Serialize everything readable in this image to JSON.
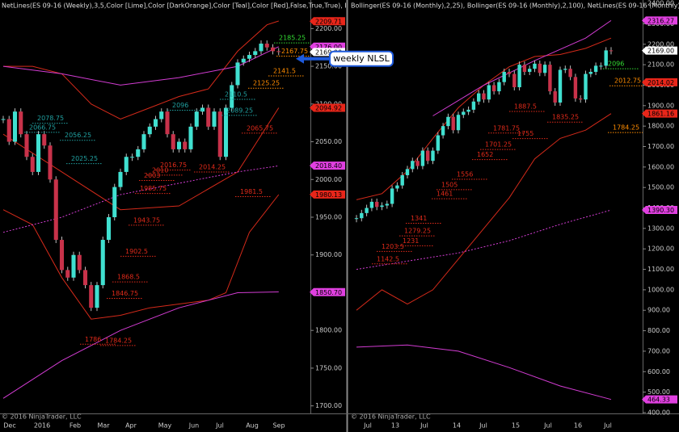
{
  "panels": [
    {
      "title": "NetLines(ES 09-16 (Weekly),3,5,Color [Lime],Color [DarkOrange],Color [Teal],Color [Red],False,True,True), Bo",
      "watermark": "© 2016 NinjaTrader, LLC",
      "ylim": [
        1690,
        2210
      ],
      "yticks": [
        {
          "value": 1700,
          "label": "1700.00"
        },
        {
          "value": 1750,
          "label": "1750.00"
        },
        {
          "value": 1800,
          "label": "1800.00"
        },
        {
          "value": 1850,
          "label": "1850.00"
        },
        {
          "value": 1900,
          "label": "1900.00"
        },
        {
          "value": 1950,
          "label": "1950.00"
        },
        {
          "value": 2000,
          "label": "2000.00"
        },
        {
          "value": 2050,
          "label": "2050.00"
        },
        {
          "value": 2100,
          "label": "2100.00"
        },
        {
          "value": 2150,
          "label": "2150.00"
        },
        {
          "value": 2200,
          "label": "2200.00"
        }
      ],
      "xlabels": [
        "Dec",
        "2016",
        "Feb",
        "Mar",
        "Apr",
        "May",
        "Jun",
        "Jul",
        "Aug",
        "Sep"
      ],
      "closes": [
        2080,
        2050,
        2090,
        2060,
        2030,
        2010,
        2060,
        2045,
        2000,
        1920,
        1880,
        1870,
        1900,
        1880,
        1860,
        1830,
        1860,
        1920,
        1950,
        1990,
        2010,
        2030,
        2030,
        2040,
        2060,
        2070,
        2080,
        2090,
        2060,
        2040,
        2050,
        2040,
        2070,
        2090,
        2095,
        2070,
        2090,
        2030,
        2095,
        2125,
        2155,
        2160,
        2165,
        2170,
        2180,
        2175,
        2170,
        2169
      ],
      "lines": [
        {
          "color": "#d42a1a",
          "dash": false,
          "x": [
            0,
            5,
            10,
            15,
            20,
            25,
            30,
            35,
            40,
            45,
            47
          ],
          "values": [
            2150,
            2150,
            2140,
            2100,
            2080,
            2095,
            2110,
            2120,
            2170,
            2205,
            2210
          ]
        },
        {
          "color": "#d42a1a",
          "dash": false,
          "x": [
            0,
            10,
            20,
            30,
            40,
            47
          ],
          "values": [
            2060,
            2010,
            1960,
            1965,
            2010,
            2095
          ]
        },
        {
          "color": "#d42a1a",
          "dash": false,
          "x": [
            0,
            5,
            10,
            15,
            20,
            25,
            30,
            35,
            38,
            42,
            47
          ],
          "values": [
            1960,
            1940,
            1870,
            1815,
            1820,
            1830,
            1835,
            1840,
            1850,
            1930,
            1980
          ]
        },
        {
          "color": "#d23cd2",
          "dash": false,
          "x": [
            0,
            10,
            20,
            30,
            40,
            47
          ],
          "values": [
            2150,
            2140,
            2125,
            2135,
            2150,
            2176
          ]
        },
        {
          "color": "#d23cd2",
          "dash": true,
          "x": [
            0,
            10,
            20,
            30,
            40,
            47
          ],
          "values": [
            1930,
            1950,
            1980,
            1995,
            2010,
            2018
          ]
        },
        {
          "color": "#d23cd2",
          "dash": false,
          "x": [
            0,
            10,
            20,
            30,
            35,
            40,
            47
          ],
          "values": [
            1710,
            1760,
            1800,
            1830,
            1840,
            1850,
            1851
          ]
        }
      ],
      "levels": [
        {
          "color": "#33dd33",
          "values": [
            2185.25
          ]
        },
        {
          "color": "#ff8c00",
          "values": [
            2167.75,
            2141.5,
            2125.25
          ]
        },
        {
          "color": "#20a0a0",
          "values": [
            2110.5,
            2096,
            2089.25,
            2078.75,
            2066.75,
            2056.25,
            2025.25
          ]
        },
        {
          "color": "#e02a1a",
          "values": [
            2065.75,
            2016.75,
            2014.25,
            2010,
            2003,
            1985.75,
            1981.5,
            1943.75,
            1902.5,
            1868.5,
            1846.75,
            1786,
            1784.25
          ]
        }
      ],
      "tags": [
        {
          "color": "#e8261a",
          "value": 2209.71
        },
        {
          "color": "#e040e0",
          "value": 2176,
          "label": "2176.00"
        },
        {
          "color": "#ffffff",
          "value": 2169,
          "label": "2169.00"
        },
        {
          "color": "#e8261a",
          "value": 2094.92
        },
        {
          "color": "#e040e0",
          "value": 2018.4,
          "label": "2018.40"
        },
        {
          "color": "#e8261a",
          "value": 1980.13
        },
        {
          "color": "#e040e0",
          "value": 1850.7,
          "label": "1850.70"
        }
      ],
      "callout": "weekly NLSL"
    },
    {
      "title": "Bollinger(ES 09-16 (Monthly),2,25), Bollinger(ES 09-16 (Monthly),2,100), NetLines(ES 09-16 (Monthly),",
      "watermark": "© 2016 NinjaTrader, LLC",
      "ylim": [
        384,
        2432
      ],
      "yticks": [
        {
          "value": 400,
          "label": "400.00"
        },
        {
          "value": 500,
          "label": "500.00"
        },
        {
          "value": 600,
          "label": "600.00"
        },
        {
          "value": 700,
          "label": "700.00"
        },
        {
          "value": 800,
          "label": "800.00"
        },
        {
          "value": 900,
          "label": "900.00"
        },
        {
          "value": 1000,
          "label": "1000.00"
        },
        {
          "value": 1100,
          "label": "1100.00"
        },
        {
          "value": 1200,
          "label": "1200.00"
        },
        {
          "value": 1300,
          "label": "1300.00"
        },
        {
          "value": 1400,
          "label": "1400.00"
        },
        {
          "value": 1500,
          "label": "1500.00"
        },
        {
          "value": 1600,
          "label": "1600.00"
        },
        {
          "value": 1700,
          "label": "1700.00"
        },
        {
          "value": 1800,
          "label": "1800.00"
        },
        {
          "value": 1900,
          "label": "1900.00"
        },
        {
          "value": 2000,
          "label": "2000.00"
        },
        {
          "value": 2100,
          "label": "2100.00"
        },
        {
          "value": 2200,
          "label": "2200.00"
        },
        {
          "value": 2300,
          "label": "2300.00"
        },
        {
          "value": 2400,
          "label": "2400.00"
        }
      ],
      "xlabels": [
        "Jul",
        "13",
        "Jul",
        "14",
        "Jul",
        "15",
        "Jul",
        "16",
        "Jul"
      ],
      "closes": [
        1350,
        1375,
        1400,
        1430,
        1405,
        1412,
        1420,
        1495,
        1510,
        1560,
        1590,
        1630,
        1605,
        1680,
        1630,
        1680,
        1755,
        1800,
        1845,
        1780,
        1855,
        1870,
        1880,
        1920,
        1960,
        1930,
        2000,
        1970,
        2015,
        2065,
        2055,
        1990,
        2100,
        2065,
        2080,
        2105,
        2060,
        2100,
        1970,
        1915,
        2075,
        2080,
        2040,
        1935,
        1930,
        2055,
        2065,
        2095,
        2095,
        2170,
        2169
      ],
      "lines": [
        {
          "color": "#d42a1a",
          "dash": false,
          "x": [
            0,
            5,
            10,
            15,
            20,
            25,
            30,
            35,
            40,
            45,
            50
          ],
          "values": [
            1440,
            1470,
            1580,
            1740,
            1890,
            2000,
            2090,
            2140,
            2150,
            2180,
            2230
          ]
        },
        {
          "color": "#d42a1a",
          "dash": false,
          "x": [
            0,
            5,
            10,
            15,
            20,
            25,
            30,
            35,
            40,
            45,
            50
          ],
          "values": [
            900,
            1000,
            930,
            1000,
            1150,
            1300,
            1450,
            1640,
            1740,
            1780,
            1861
          ]
        },
        {
          "color": "#d23cd2",
          "dash": false,
          "x": [
            15,
            25,
            35,
            45,
            50
          ],
          "values": [
            1850,
            2000,
            2120,
            2230,
            2316
          ]
        },
        {
          "color": "#d23cd2",
          "dash": true,
          "x": [
            0,
            10,
            20,
            30,
            40,
            50
          ],
          "values": [
            1100,
            1140,
            1180,
            1240,
            1320,
            1390
          ]
        },
        {
          "color": "#d23cd2",
          "dash": false,
          "x": [
            0,
            10,
            20,
            30,
            40,
            50
          ],
          "values": [
            720,
            730,
            700,
            620,
            530,
            464
          ]
        }
      ],
      "levels": [
        {
          "color": "#33dd33",
          "values": [
            2096
          ]
        },
        {
          "color": "#ff8c00",
          "values": [
            2012.75,
            1784.25
          ]
        },
        {
          "color": "#e02a1a",
          "values": [
            1887.5,
            1835.25,
            1781.75,
            1755,
            1701.25,
            1652,
            1556,
            1505,
            1461,
            1341,
            1279.25,
            1231,
            1203.5,
            1142.5
          ]
        }
      ],
      "tags": [
        {
          "color": "#e040e0",
          "value": 2316.27
        },
        {
          "color": "#ffffff",
          "value": 2169,
          "label": "2169.00"
        },
        {
          "color": "#e8261a",
          "value": 2014.02
        },
        {
          "color": "#e8261a",
          "value": 1861.16
        },
        {
          "color": "#e040e0",
          "value": 1390.3,
          "label": "1390.30"
        },
        {
          "color": "#e040e0",
          "value": 464.33
        }
      ]
    }
  ]
}
